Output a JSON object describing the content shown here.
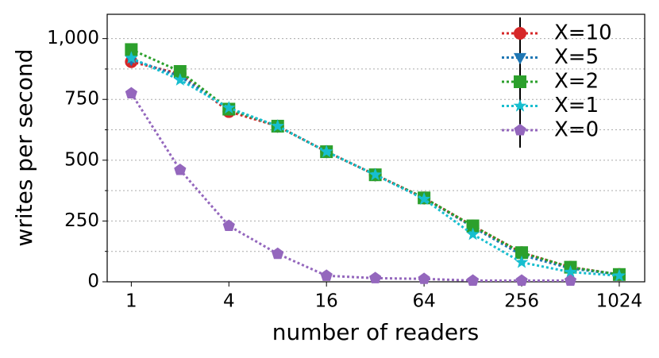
{
  "chart_data": {
    "type": "line",
    "x_label": "number of readers",
    "y_label": "writes per second",
    "x": [
      1,
      2,
      4,
      8,
      16,
      32,
      64,
      128,
      256,
      512,
      1024
    ],
    "log_x": true,
    "log_base": 2,
    "xlim": [
      0.71,
      1470
    ],
    "xticks": [
      1,
      4,
      16,
      64,
      256,
      1024
    ],
    "ylim": [
      0,
      1100
    ],
    "yticks": [
      0,
      250,
      500,
      750,
      {
        "value": 1000,
        "label": "1,000"
      }
    ],
    "yminor": [
      125,
      375,
      625,
      875
    ],
    "grid": true,
    "legend": "upper right",
    "series": [
      {
        "name": "X=10",
        "color": "#d62728",
        "marker": "circle",
        "values": [
          905,
          855,
          700,
          640,
          535,
          440,
          345,
          230,
          120,
          60,
          30
        ]
      },
      {
        "name": "X=5",
        "color": "#1f77b4",
        "marker": "triangle-down",
        "values": [
          915,
          845,
          710,
          640,
          535,
          440,
          345,
          225,
          110,
          55,
          30
        ]
      },
      {
        "name": "X=2",
        "color": "#2ca02c",
        "marker": "square",
        "values": [
          955,
          865,
          710,
          640,
          535,
          440,
          345,
          230,
          120,
          60,
          30
        ]
      },
      {
        "name": "X=1",
        "color": "#17becf",
        "marker": "star",
        "values": [
          920,
          830,
          715,
          640,
          535,
          440,
          340,
          195,
          80,
          40,
          25
        ]
      },
      {
        "name": "X=0",
        "color": "#9467bd",
        "marker": "pentagon",
        "values": [
          775,
          460,
          230,
          115,
          25,
          15,
          12,
          5,
          5,
          5,
          null
        ]
      }
    ]
  }
}
